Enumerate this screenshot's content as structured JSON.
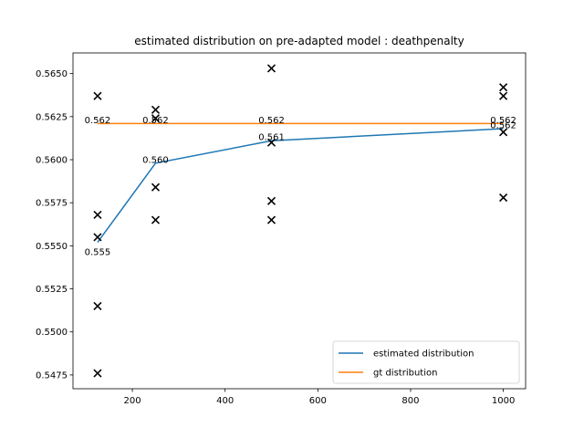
{
  "chart_data": {
    "type": "line",
    "title": "estimated distribution on pre-adapted model : deathpenalty",
    "xlabel": "",
    "ylabel": "",
    "xlim": [
      72,
      1048
    ],
    "ylim": [
      0.5467,
      0.5662
    ],
    "x_ticks": [
      200,
      400,
      600,
      800,
      1000
    ],
    "y_ticks": [
      0.5475,
      0.55,
      0.5525,
      0.555,
      0.5575,
      0.56,
      0.5625,
      0.565
    ],
    "y_tick_labels": [
      "0.5475",
      "0.5500",
      "0.5525",
      "0.5550",
      "0.5575",
      "0.5600",
      "0.5625",
      "0.5650"
    ],
    "grid": false,
    "legend_position": "lower-right",
    "series": [
      {
        "name": "estimated distribution",
        "color": "#1f77b4",
        "x": [
          125,
          250,
          500,
          1000
        ],
        "y": [
          0.5552,
          0.5598,
          0.5611,
          0.5618
        ],
        "labels": [
          "0.555",
          "0.560",
          "0.561",
          "0.562"
        ]
      },
      {
        "name": "gt distribution",
        "color": "#ff7f0e",
        "x": [
          125,
          250,
          500,
          1000
        ],
        "y": [
          0.5621,
          0.5621,
          0.5621,
          0.5621
        ],
        "labels": [
          "0.562",
          "0.562",
          "0.562",
          "0.562"
        ]
      }
    ],
    "scatter": {
      "marker": "x",
      "color": "#000000",
      "points": [
        [
          125,
          0.5637
        ],
        [
          125,
          0.5568
        ],
        [
          125,
          0.5555
        ],
        [
          125,
          0.5515
        ],
        [
          125,
          0.5476
        ],
        [
          250,
          0.5629
        ],
        [
          250,
          0.5624
        ],
        [
          250,
          0.5584
        ],
        [
          250,
          0.5565
        ],
        [
          500,
          0.5653
        ],
        [
          500,
          0.561
        ],
        [
          500,
          0.5576
        ],
        [
          500,
          0.5565
        ],
        [
          1000,
          0.5642
        ],
        [
          1000,
          0.5637
        ],
        [
          1000,
          0.5616
        ],
        [
          1000,
          0.5578
        ]
      ]
    }
  }
}
